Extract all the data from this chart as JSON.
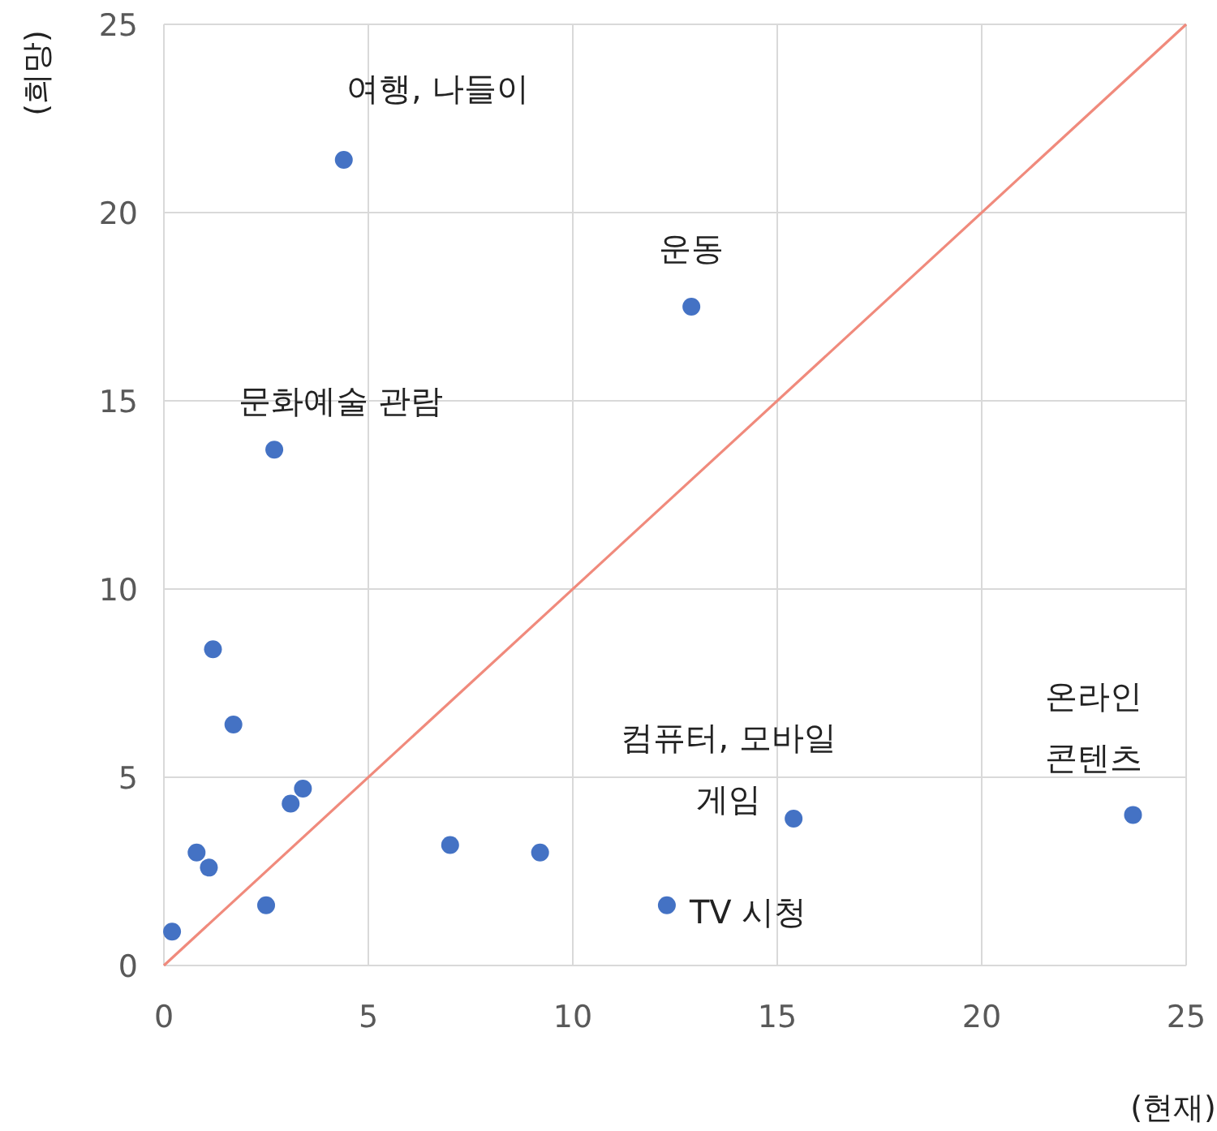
{
  "chart_data": {
    "type": "scatter",
    "xlabel": "(현재)",
    "ylabel": "(희망)",
    "xlim": [
      0,
      25
    ],
    "ylim": [
      0,
      25
    ],
    "xticks": [
      0,
      5,
      10,
      15,
      20,
      25
    ],
    "yticks": [
      0,
      5,
      10,
      15,
      20,
      25
    ],
    "grid": true,
    "series": [
      {
        "marker": "circle",
        "color": "#4472c4",
        "x": [
          4.4,
          12.9,
          2.7,
          1.2,
          1.7,
          3.4,
          3.1,
          0.8,
          1.1,
          2.5,
          0.2,
          7.0,
          9.2,
          12.3,
          15.4,
          23.7
        ],
        "values": [
          21.4,
          17.5,
          13.7,
          8.4,
          6.4,
          4.7,
          4.3,
          3.0,
          2.6,
          1.6,
          0.9,
          3.2,
          3.0,
          1.6,
          3.9,
          4.0
        ]
      },
      {
        "type": "line",
        "marker": "none",
        "color": "#f08a7c",
        "x": [
          0,
          25
        ],
        "values": [
          0,
          25
        ]
      }
    ],
    "annotations": [
      {
        "text": "여행, 나들이",
        "x": 4.4,
        "y": 21.4
      },
      {
        "text": "운동",
        "x": 12.9,
        "y": 17.5
      },
      {
        "text": "문화예술 관람",
        "x": 2.7,
        "y": 13.7
      },
      {
        "text": "컴퓨터, 모바일\n게임",
        "x": 15.4,
        "y": 3.9
      },
      {
        "text": "TV 시청",
        "x": 12.3,
        "y": 1.6
      },
      {
        "text": "온라인\n콘텐츠",
        "x": 23.7,
        "y": 4.0
      }
    ]
  }
}
